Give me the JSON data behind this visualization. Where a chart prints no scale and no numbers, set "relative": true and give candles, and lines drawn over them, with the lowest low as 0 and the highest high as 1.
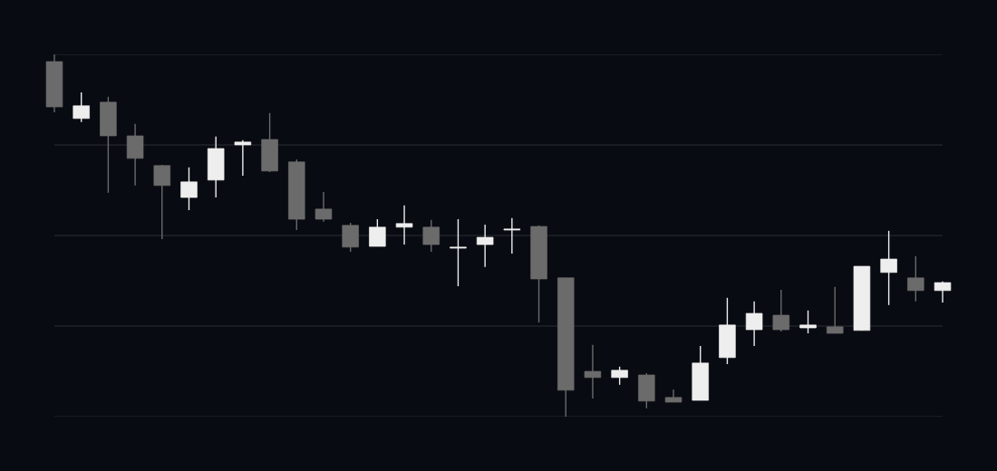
{
  "chart_data": {
    "type": "candlestick",
    "relative": true,
    "grid": "y",
    "categories": [
      null,
      null,
      null,
      null,
      null,
      null,
      null,
      null,
      null,
      null,
      null,
      null,
      null,
      null,
      null,
      null,
      null,
      null,
      null,
      null,
      null,
      null,
      null,
      null,
      null,
      null,
      null,
      null,
      null,
      null,
      null,
      null,
      null,
      null
    ],
    "ohlc": [
      [
        0.98,
        1.0,
        0.84,
        0.855
      ],
      [
        0.823,
        0.895,
        0.813,
        0.858
      ],
      [
        0.868,
        0.883,
        0.618,
        0.775
      ],
      [
        0.775,
        0.808,
        0.638,
        0.713
      ],
      [
        0.693,
        0.695,
        0.49,
        0.638
      ],
      [
        0.605,
        0.688,
        0.57,
        0.648
      ],
      [
        0.653,
        0.773,
        0.605,
        0.74
      ],
      [
        0.75,
        0.763,
        0.665,
        0.758
      ],
      [
        0.765,
        0.838,
        0.675,
        0.678
      ],
      [
        0.703,
        0.71,
        0.515,
        0.545
      ],
      [
        0.573,
        0.62,
        0.538,
        0.545
      ],
      [
        0.528,
        0.535,
        0.455,
        0.468
      ],
      [
        0.47,
        0.545,
        0.47,
        0.523
      ],
      [
        0.523,
        0.583,
        0.475,
        0.533
      ],
      [
        0.523,
        0.543,
        0.455,
        0.475
      ],
      [
        0.465,
        0.545,
        0.36,
        0.468
      ],
      [
        0.475,
        0.53,
        0.413,
        0.495
      ],
      [
        0.515,
        0.548,
        0.45,
        0.518
      ],
      [
        0.525,
        0.528,
        0.26,
        0.38
      ],
      [
        0.383,
        0.383,
        0.0,
        0.073
      ],
      [
        0.125,
        0.198,
        0.05,
        0.108
      ],
      [
        0.108,
        0.138,
        0.088,
        0.128
      ],
      [
        0.115,
        0.12,
        0.023,
        0.043
      ],
      [
        0.053,
        0.075,
        0.04,
        0.04
      ],
      [
        0.045,
        0.195,
        0.045,
        0.148
      ],
      [
        0.163,
        0.328,
        0.145,
        0.253
      ],
      [
        0.24,
        0.318,
        0.195,
        0.285
      ],
      [
        0.28,
        0.35,
        0.235,
        0.24
      ],
      [
        0.245,
        0.293,
        0.23,
        0.253
      ],
      [
        0.248,
        0.358,
        0.23,
        0.23
      ],
      [
        0.238,
        0.415,
        0.238,
        0.415
      ],
      [
        0.398,
        0.513,
        0.308,
        0.435
      ],
      [
        0.383,
        0.443,
        0.318,
        0.348
      ],
      [
        0.348,
        0.373,
        0.315,
        0.37
      ]
    ],
    "colors": [
      "#6b6b6b",
      "#eeeeee",
      "#6b6b6b",
      "#6b6b6b",
      "#6b6b6b",
      "#eeeeee",
      "#eeeeee",
      "#eeeeee",
      "#6b6b6b",
      "#6b6b6b",
      "#6b6b6b",
      "#6b6b6b",
      "#eeeeee",
      "#eeeeee",
      "#6b6b6b",
      "#eeeeee",
      "#eeeeee",
      "#eeeeee",
      "#6b6b6b",
      "#6b6b6b",
      "#6b6b6b",
      "#eeeeee",
      "#6b6b6b",
      "#6b6b6b",
      "#eeeeee",
      "#eeeeee",
      "#eeeeee",
      "#6b6b6b",
      "#eeeeee",
      "#6b6b6b",
      "#eeeeee",
      "#eeeeee",
      "#6b6b6b",
      "#eeeeee"
    ]
  }
}
